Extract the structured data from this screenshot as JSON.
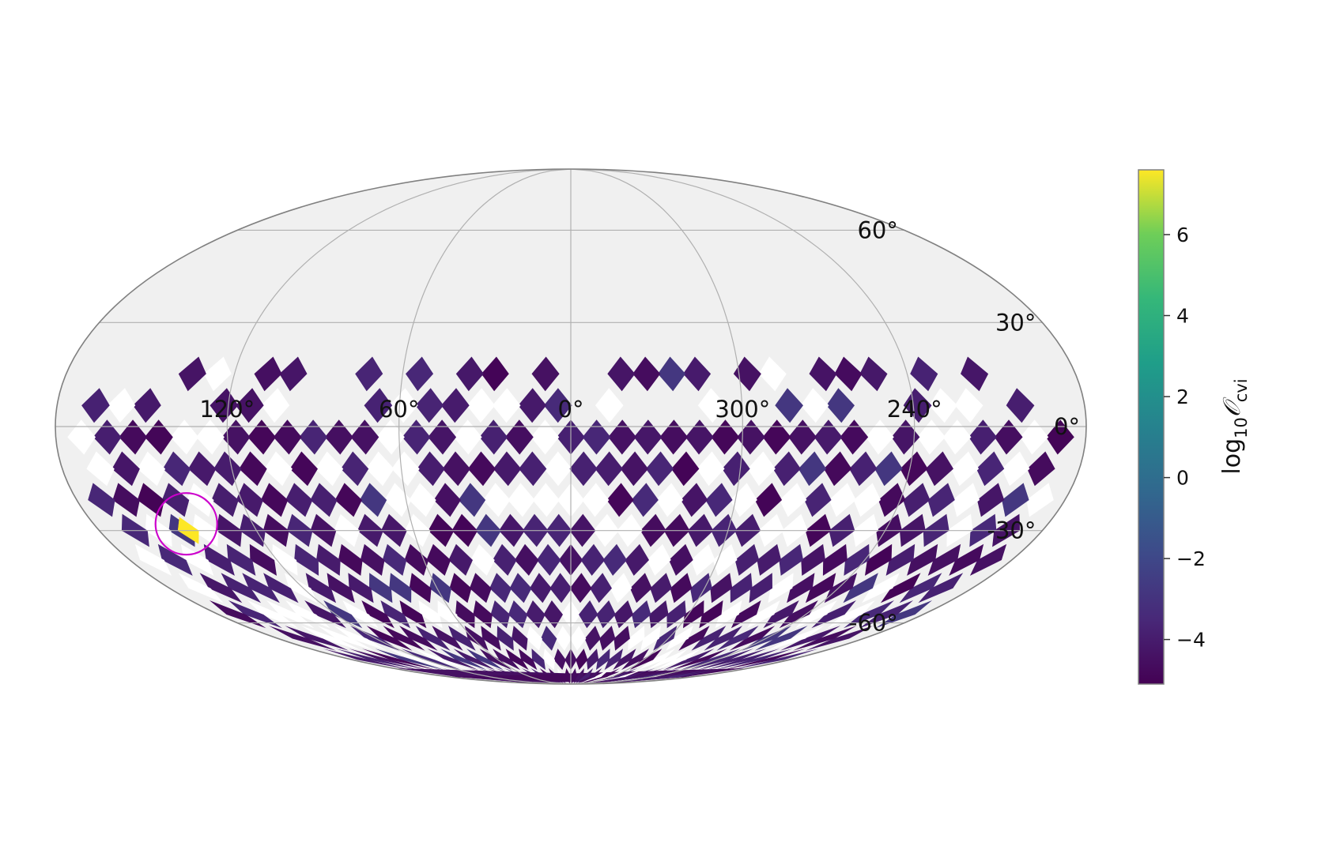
{
  "chart_data": {
    "type": "heatmap",
    "projection": "mollweide",
    "title": "",
    "grid": true,
    "longitude_labels": [
      "120°",
      "60°",
      "0°",
      "300°",
      "240°"
    ],
    "latitude_labels": [
      "60°",
      "30°",
      "0°",
      "-30°",
      "-60°"
    ],
    "longitude_ticks": [
      120,
      60,
      0,
      300,
      240
    ],
    "latitude_ticks": [
      60,
      30,
      0,
      -30,
      -60
    ],
    "colorbar": {
      "label_main": "log",
      "label_sub": "10",
      "label_symbol": "𝒪",
      "label_subscript": "cvi",
      "range": [
        -5.1,
        7.6
      ],
      "ticks": [
        6,
        4,
        2,
        0,
        -2,
        -4
      ],
      "tick_labels": [
        "6",
        "4",
        "2",
        "0",
        "−2",
        "−4"
      ],
      "colormap": "viridis"
    },
    "map_colors": {
      "background": "#f0f0f0",
      "masked": "#ffffff",
      "grid": "#b0b0b0",
      "outline": "#808080",
      "marker_circle": "#cc00cc"
    },
    "hotspot": {
      "lon": 146,
      "lat": -30,
      "value": 7.6
    },
    "marker_circle": {
      "lon": 145,
      "lat": -28,
      "radius_deg": 8
    },
    "data_region": "southern sky below ~+15° declination; values mostly between -5 and -3 (log10 O_cvi)"
  }
}
